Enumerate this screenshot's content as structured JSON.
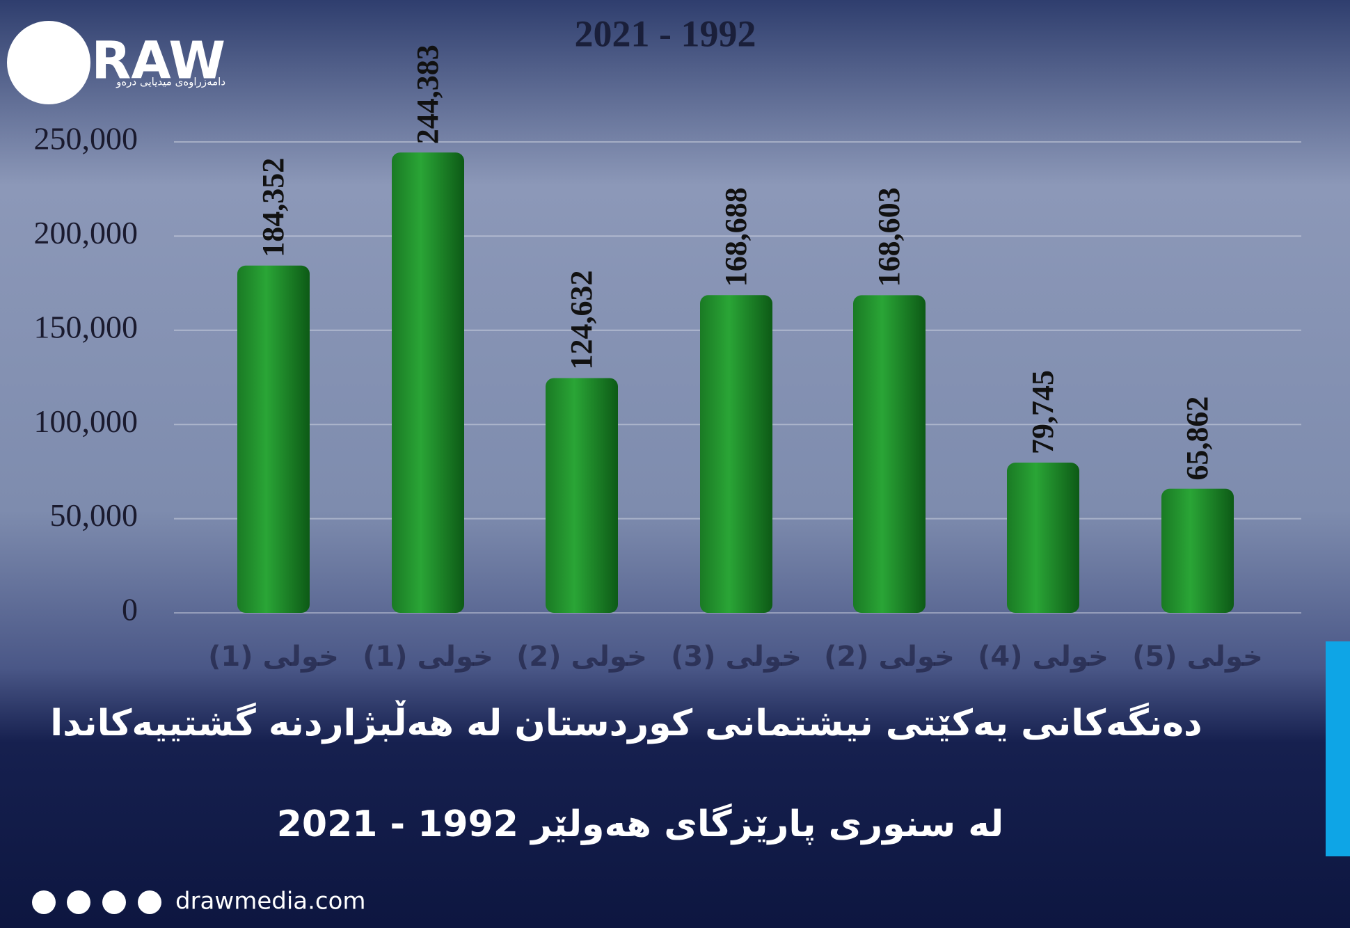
{
  "chart_data": {
    "type": "bar",
    "subtitle": "2021 - 1992",
    "title": "دەنگەکانی یەکێتی نیشتمانی کوردستان لە هەڵبژاردنە گشتییەکاندا",
    "title_line2": "لە سنوری پارێزگای هەولێر 1992 - 2021",
    "categories": [
      "خولی (1)",
      "خولی (1)",
      "خولی (2)",
      "خولی (3)",
      "خولی (2)",
      "خولی (4)",
      "خولی (5)"
    ],
    "values": [
      184352,
      244383,
      124632,
      168688,
      168603,
      79745,
      65862
    ],
    "value_labels": [
      "184,352",
      "244,383",
      "124,632",
      "168,688",
      "168,603",
      "79,745",
      "65,862"
    ],
    "color": "#1f8a2a",
    "ylim": [
      0,
      250000
    ],
    "yticks": [
      0,
      {
        "value": 50000,
        "label": "50,000"
      },
      {
        "value": 100000,
        "label": "100,000"
      },
      {
        "value": 150000,
        "label": "150,000"
      },
      {
        "value": 200000,
        "label": "200,000"
      },
      {
        "value": 250000,
        "label": "250,000"
      }
    ],
    "grid": true
  },
  "brand": {
    "logo": "DRAW",
    "tagline": "دامەزراوەی میدیایی درەو",
    "website": "drawmedia.com"
  }
}
